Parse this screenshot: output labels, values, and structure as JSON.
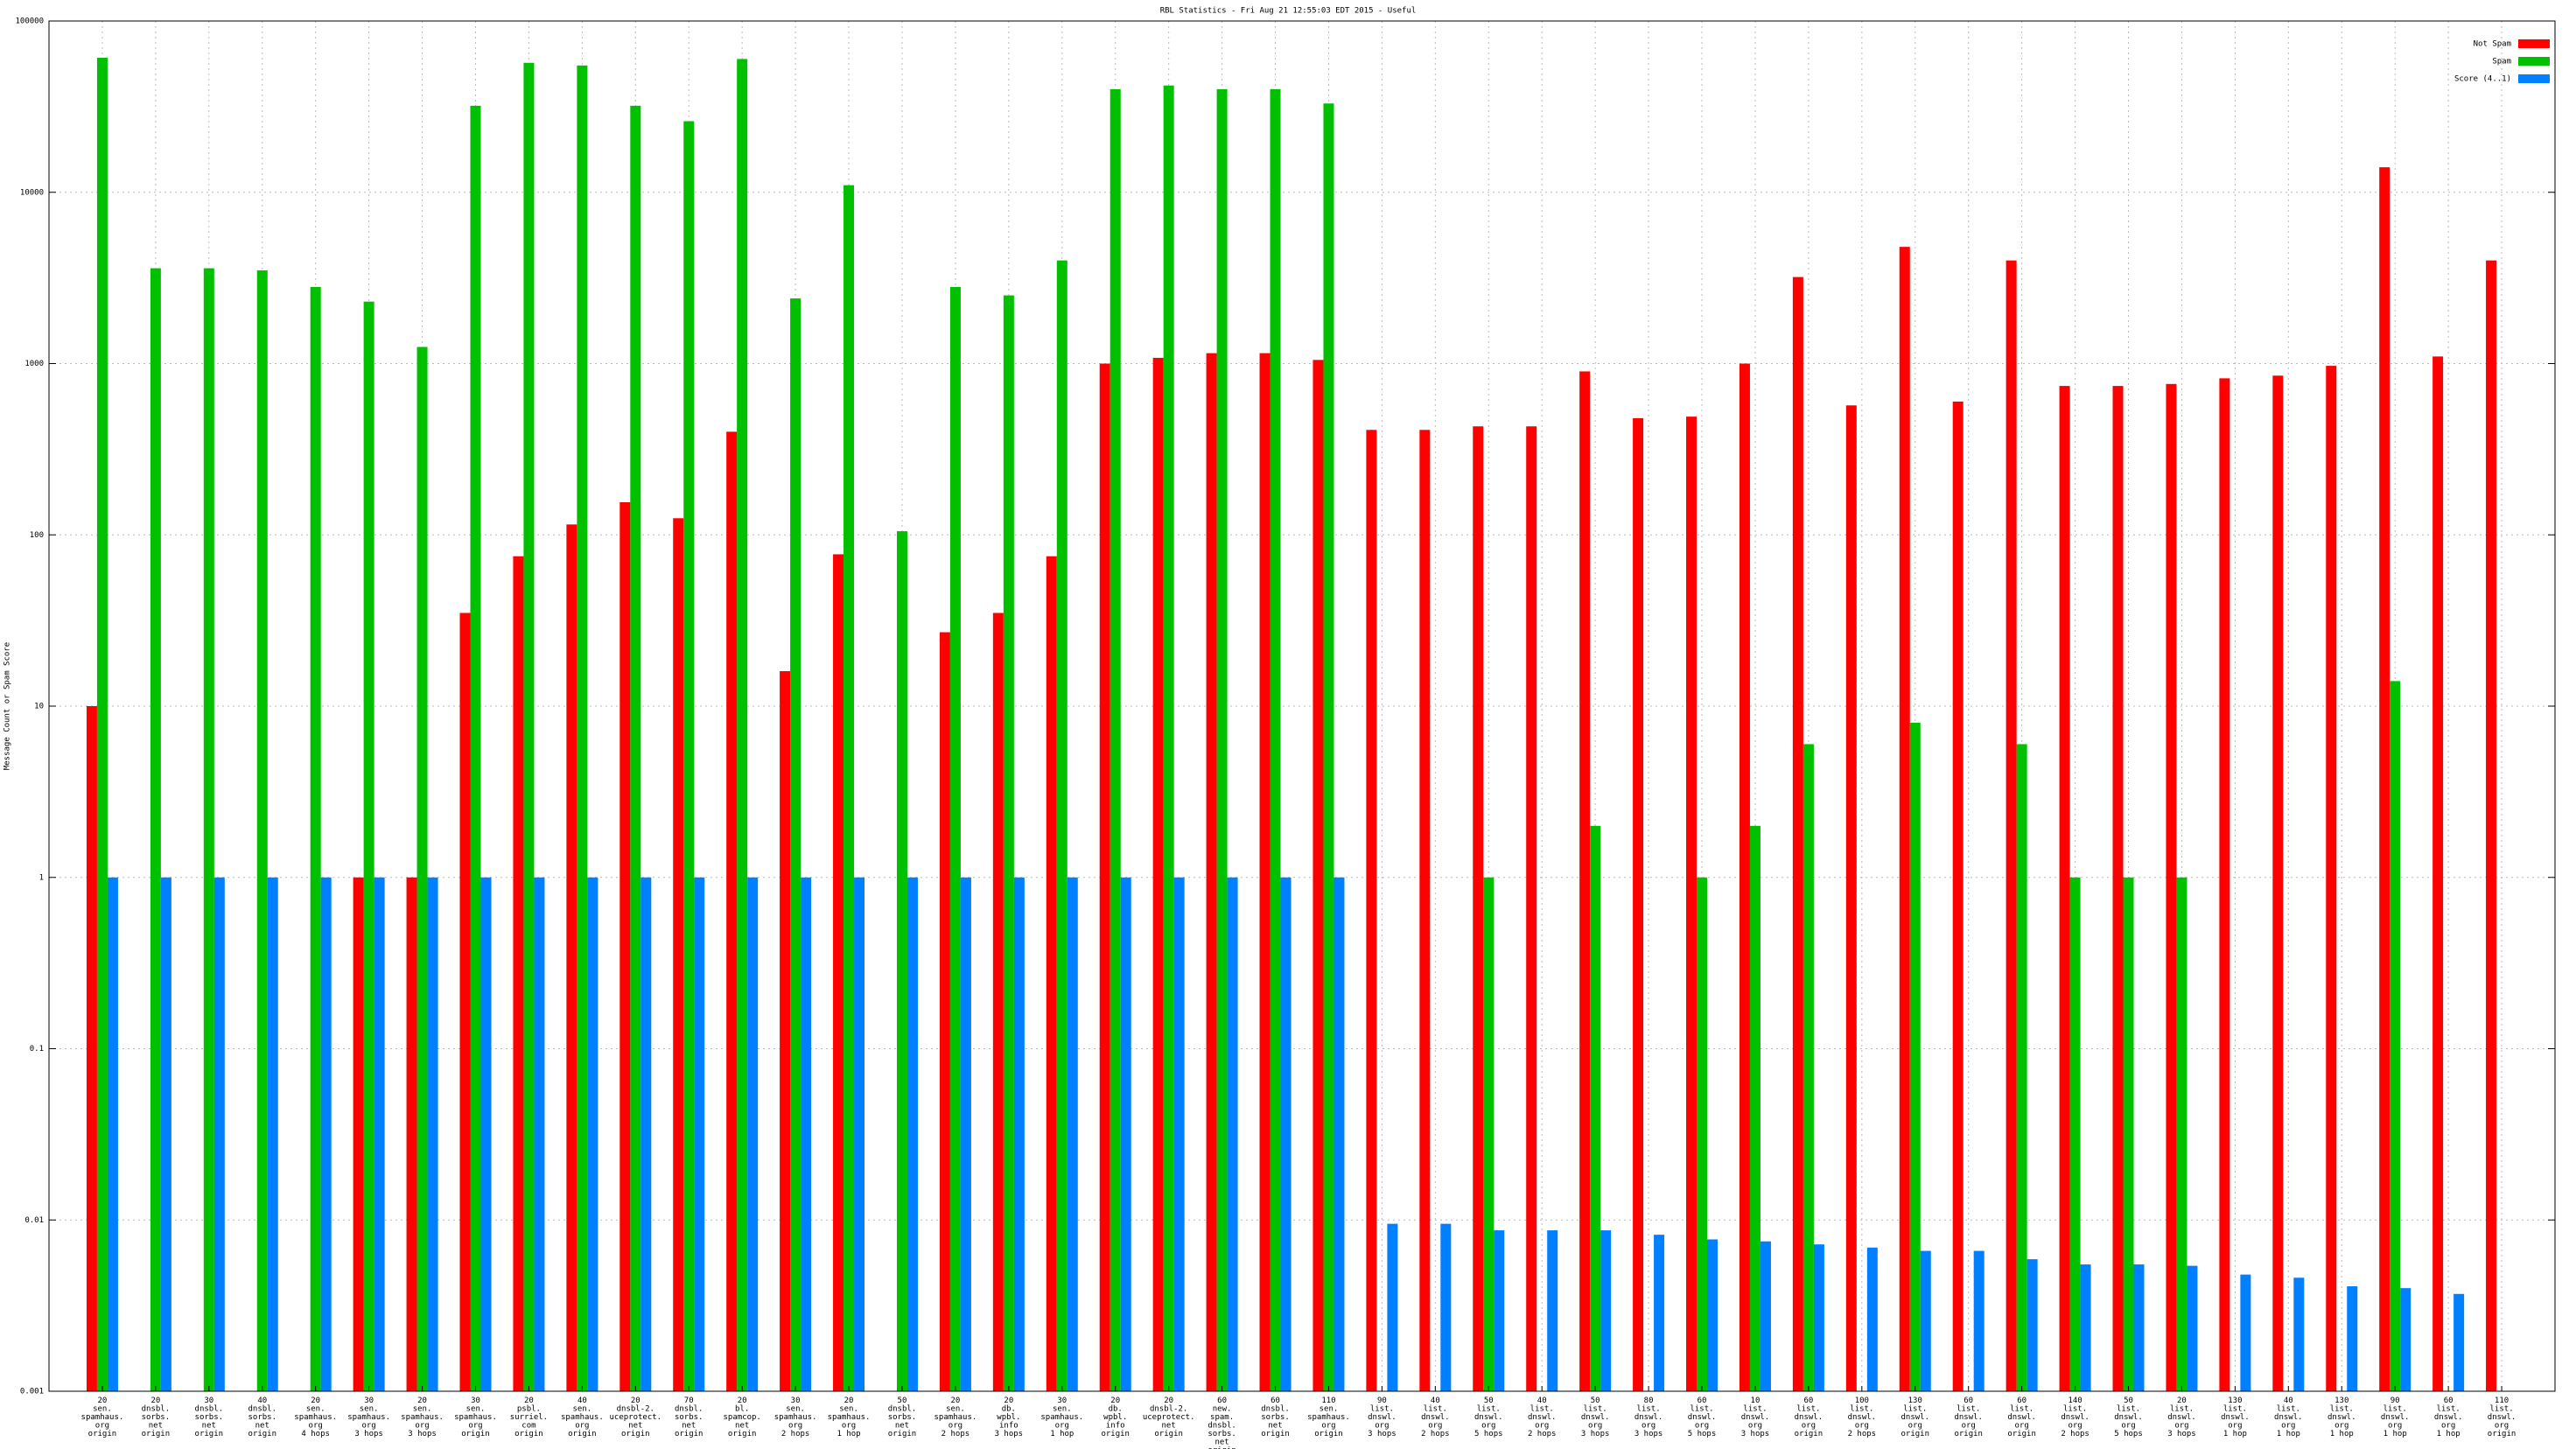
{
  "chart_data": {
    "type": "bar",
    "title": "RBL Statistics - Fri Aug 21 12:55:03 EDT 2015 - Useful",
    "y_label": "Message Count or Spam Score",
    "log_scale": true,
    "grid": true,
    "legend": "upper right",
    "categories": [
      "20\nsen.\nspamhaus.\norg\norigin",
      "20\ndnsbl.\nsorbs.\nnet\norigin",
      "30\ndnsbl.\nsorbs.\nnet\norigin",
      "40\ndnsbl.\nsorbs.\nnet\norigin",
      "20\nsen.\nspamhaus.\norg\n4 hops",
      "30\nsen.\nspamhaus.\norg\n3 hops",
      "20\nsen.\nspamhaus.\norg\n3 hops",
      "30\nsen.\nspamhaus.\norg\norigin",
      "20\npsbl.\nsurriel.\ncom\norigin",
      "40\nsen.\nspamhaus.\norg\norigin",
      "20\ndnsbl-2.\nuceprotect.\nnet\norigin",
      "70\ndnsbl.\nsorbs.\nnet\norigin",
      "20\nbl.\nspamcop.\nnet\norigin",
      "30\nsen.\nspamhaus.\norg\n2 hops",
      "20\nsen.\nspamhaus.\norg\n1 hop",
      "50\ndnsbl.\nsorbs.\nnet\norigin",
      "20\nsen.\nspamhaus.\norg\n2 hops",
      "20\ndb.\nwpbl.\ninfo\n3 hops",
      "30\nsen.\nspamhaus.\norg\n1 hop",
      "20\ndb.\nwpbl.\ninfo\norigin",
      "20\ndnsbl-2.\nuceprotect.\nnet\norigin",
      "60\nnew.\nspam.\ndnsbl.\nsorbs.\nnet\norigin",
      "60\ndnsbl.\nsorbs.\nnet\norigin",
      "110\nsen.\nspamhaus.\norg\norigin",
      "90\nlist.\ndnswl.\norg\n3 hops",
      "40\nlist.\ndnswl.\norg\n2 hops",
      "50\nlist.\ndnswl.\norg\n5 hops",
      "40\nlist.\ndnswl.\norg\n2 hops",
      "50\nlist.\ndnswl.\norg\n3 hops",
      "80\nlist.\ndnswl.\norg\n3 hops",
      "60\nlist.\ndnswl.\norg\n5 hops",
      "10\nlist.\ndnswl.\norg\n3 hops",
      "60\nlist.\ndnswl.\norg\norigin",
      "100\nlist.\ndnswl.\norg\n2 hops",
      "130\nlist.\ndnswl.\norg\norigin",
      "60\nlist.\ndnswl.\norg\norigin",
      "60\nlist.\ndnswl.\norg\norigin",
      "140\nlist.\ndnswl.\norg\n2 hops",
      "50\nlist.\ndnswl.\norg\n5 hops",
      "20\nlist.\ndnswl.\norg\n3 hops",
      "130\nlist.\ndnswl.\norg\n1 hop",
      "40\nlist.\ndnswl.\norg\n1 hop",
      "130\nlist.\ndnswl.\norg\n1 hop",
      "90\nlist.\ndnswl.\norg\n1 hop",
      "60\nlist.\ndnswl.\norg\n1 hop",
      "110\nlist.\ndnswl.\norg\norigin"
    ],
    "series": [
      {
        "name": "Not Spam",
        "color": "#ff0000",
        "values": [
          10,
          null,
          null,
          null,
          null,
          1,
          1,
          35,
          75,
          115,
          155,
          125,
          400,
          16,
          77,
          null,
          27,
          35,
          75,
          1000,
          1080,
          1150,
          1150,
          1050,
          410,
          410,
          430,
          430,
          900,
          480,
          490,
          1000,
          3200,
          570,
          4800,
          600,
          4000,
          740,
          740,
          760,
          820,
          850,
          970,
          14000,
          1100,
          4000
        ]
      },
      {
        "name": "Spam",
        "color": "#00c000",
        "values": [
          61000,
          3600,
          3600,
          3500,
          2800,
          2300,
          1250,
          32000,
          57000,
          55000,
          32000,
          26000,
          60000,
          2400,
          11000,
          105,
          2800,
          2500,
          4000,
          40000,
          42000,
          40000,
          40000,
          33000,
          null,
          null,
          1,
          null,
          2,
          null,
          1,
          2,
          6,
          null,
          8,
          null,
          6,
          1,
          1,
          1,
          null,
          null,
          null,
          14,
          null,
          null
        ]
      },
      {
        "name": "Score (4..1)",
        "color": "#0080ff",
        "values": [
          1,
          1,
          1,
          1,
          1,
          1,
          1,
          1,
          1,
          1,
          1,
          1,
          1,
          1,
          1,
          1,
          1,
          1,
          1,
          1,
          1,
          1,
          1,
          1,
          0.0095,
          0.0095,
          0.0087,
          0.0087,
          0.0087,
          0.0082,
          0.0077,
          0.0075,
          0.0072,
          0.0069,
          0.0066,
          0.0066,
          0.0059,
          0.0055,
          0.0055,
          0.0054,
          0.0048,
          0.0046,
          0.0041,
          0.004,
          0.0037,
          null
        ]
      }
    ],
    "ylim": [
      0.001,
      100000
    ],
    "yticks": [
      0.001,
      0.01,
      0.1,
      1,
      10,
      100,
      1000,
      10000,
      100000
    ]
  }
}
